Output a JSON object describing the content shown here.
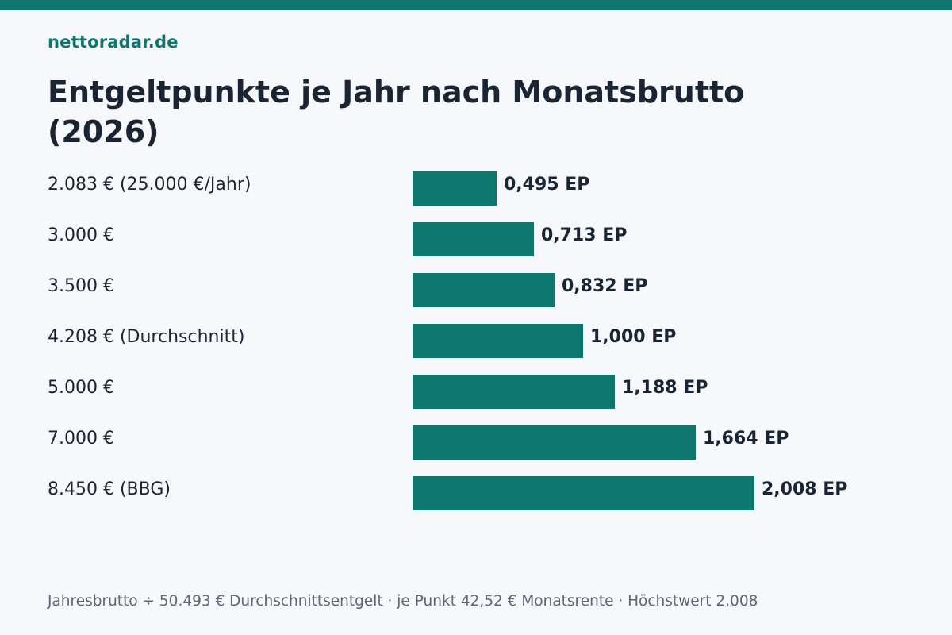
{
  "brand": "nettoradar.de",
  "colors": {
    "accent": "#0f766e",
    "text": "#1b2433",
    "muted": "#5b6676",
    "background": "#f6f8fb"
  },
  "chart_data": {
    "type": "bar",
    "orientation": "horizontal",
    "title": "Entgeltpunkte je Jahr nach Monatsbrutto (2026)",
    "categories": [
      "2.083 € (25.000 €/Jahr)",
      "3.000 €",
      "3.500 €",
      "4.208 € (Durchschnitt)",
      "5.000 €",
      "7.000 €",
      "8.450 € (BBG)"
    ],
    "values": [
      0.495,
      0.713,
      0.832,
      1.0,
      1.188,
      1.664,
      2.008
    ],
    "value_labels": [
      "0,495 EP",
      "0,713 EP",
      "0,832 EP",
      "1,000 EP",
      "1,188 EP",
      "1,664 EP",
      "2,008 EP"
    ],
    "xlim": [
      0,
      2.008
    ],
    "grid": false,
    "legend": "none"
  },
  "footnote": "Jahresbrutto ÷ 50.493 € Durchschnittsentgelt · je Punkt 42,52 € Monatsrente · Höchstwert 2,008"
}
